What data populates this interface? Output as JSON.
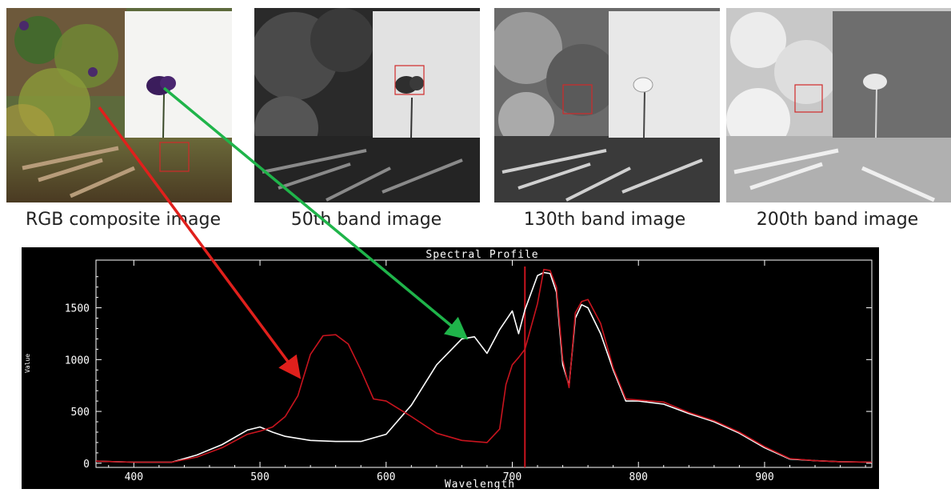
{
  "panels": [
    {
      "caption": "RGB composite image",
      "mode": "rgb"
    },
    {
      "caption": "50th band image",
      "mode": "band50"
    },
    {
      "caption": "130th band image",
      "mode": "band130"
    },
    {
      "caption": "200th band image",
      "mode": "band200"
    }
  ],
  "colors": {
    "flower_series": "#c8141e",
    "background_series": "#ffffff",
    "green_arrow": "#1fb44a",
    "red_arrow": "#e0201c",
    "roi_box": "#e02020",
    "plot_bg": "#000000",
    "axes": "#ffffff"
  },
  "chart_data": {
    "type": "line",
    "title": "Spectral Profile",
    "xlabel": "Wavelength",
    "ylabel": "Value",
    "xlim": [
      370,
      985
    ],
    "ylim": [
      -40,
      1960
    ],
    "xticks": [
      400,
      500,
      600,
      700,
      800,
      900
    ],
    "yticks": [
      0,
      500,
      1000,
      1500
    ],
    "grid": false,
    "vline_x": 710,
    "series": [
      {
        "color": "white",
        "x": [
          370,
          400,
          430,
          450,
          470,
          490,
          500,
          510,
          520,
          540,
          560,
          580,
          600,
          620,
          640,
          660,
          670,
          680,
          690,
          700,
          705,
          710,
          720,
          725,
          730,
          735,
          740,
          745,
          750,
          755,
          760,
          770,
          780,
          790,
          800,
          820,
          840,
          860,
          880,
          900,
          920,
          940,
          960,
          985
        ],
        "y": [
          20,
          10,
          10,
          80,
          180,
          320,
          350,
          300,
          260,
          220,
          210,
          210,
          280,
          560,
          950,
          1200,
          1220,
          1060,
          1290,
          1470,
          1250,
          1480,
          1810,
          1840,
          1830,
          1650,
          950,
          750,
          1400,
          1530,
          1500,
          1250,
          900,
          600,
          600,
          570,
          480,
          400,
          290,
          150,
          40,
          25,
          15,
          10
        ]
      },
      {
        "color": "red",
        "x": [
          370,
          400,
          430,
          450,
          470,
          490,
          500,
          510,
          520,
          530,
          540,
          550,
          560,
          570,
          580,
          590,
          600,
          620,
          640,
          660,
          680,
          690,
          695,
          700,
          705,
          710,
          720,
          725,
          730,
          735,
          740,
          745,
          750,
          755,
          760,
          770,
          780,
          790,
          800,
          820,
          840,
          860,
          880,
          900,
          920,
          940,
          960,
          985
        ],
        "y": [
          20,
          10,
          10,
          60,
          150,
          280,
          310,
          350,
          450,
          650,
          1050,
          1230,
          1240,
          1150,
          900,
          620,
          600,
          450,
          290,
          220,
          200,
          330,
          760,
          950,
          1020,
          1100,
          1540,
          1870,
          1860,
          1700,
          1000,
          730,
          1450,
          1560,
          1580,
          1350,
          920,
          620,
          610,
          590,
          490,
          410,
          300,
          160,
          45,
          25,
          15,
          10
        ]
      }
    ]
  }
}
